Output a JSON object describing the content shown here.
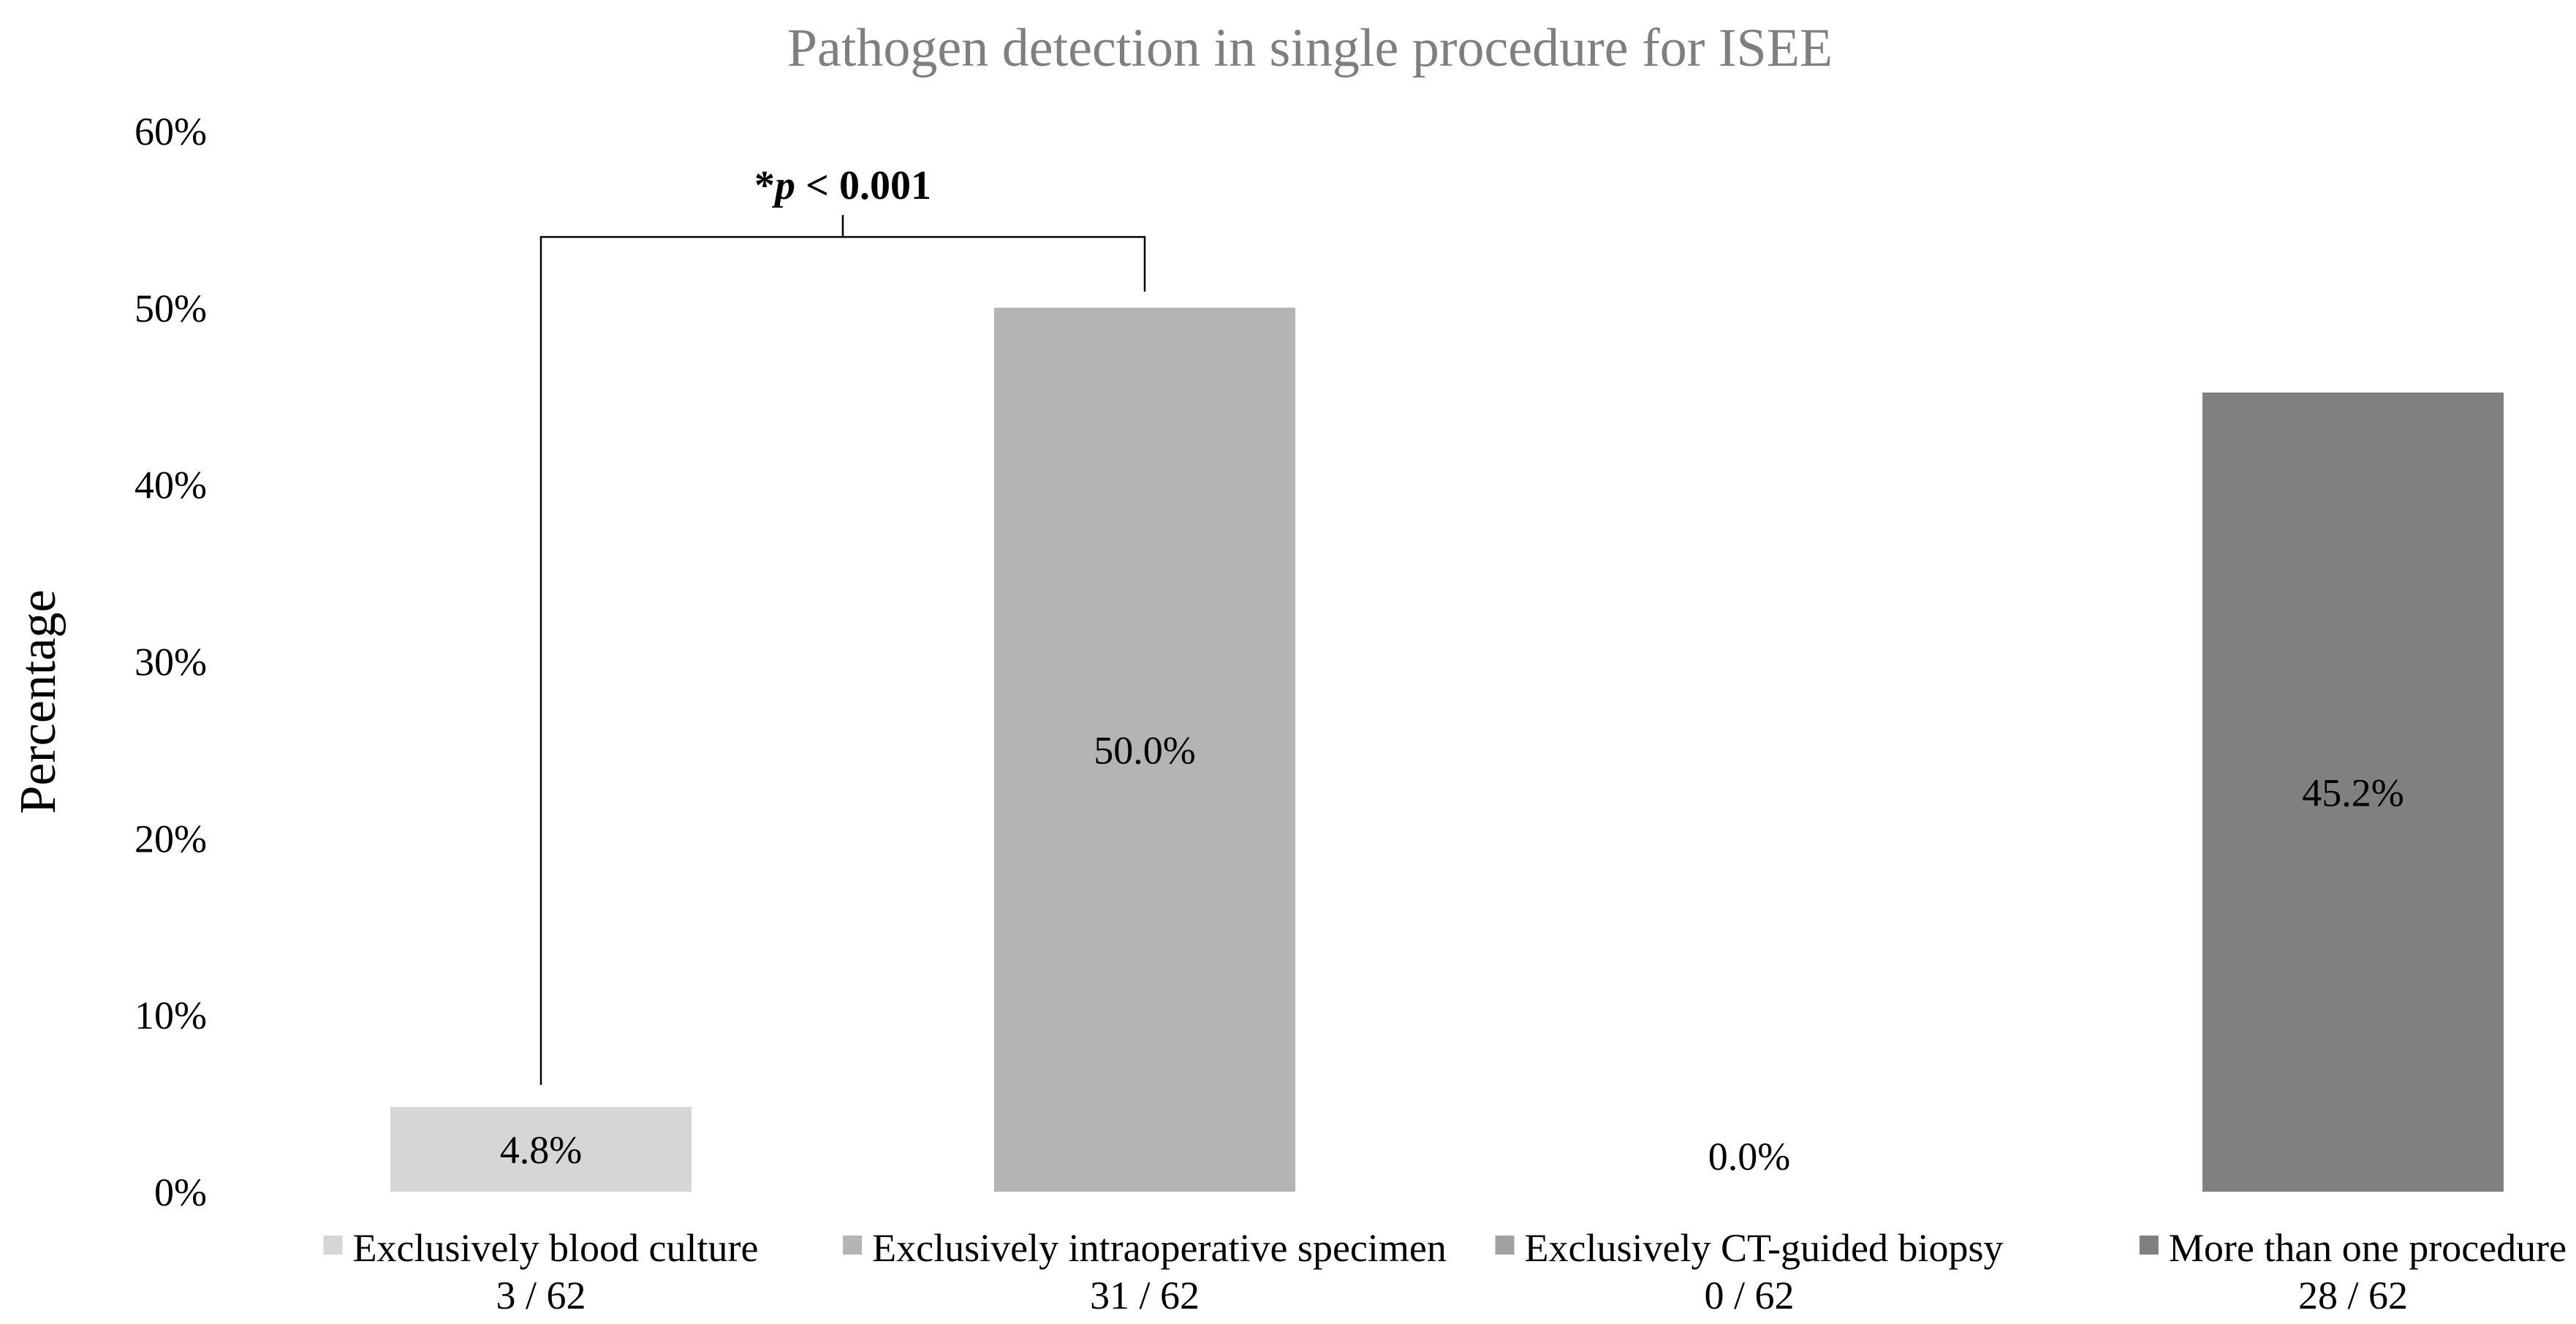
{
  "chart_data": {
    "type": "bar",
    "title": "Pathogen detection in single procedure for ISEE",
    "ylabel": "Percentage",
    "xlabel": "",
    "ylim": [
      0,
      60
    ],
    "yticks": [
      0,
      10,
      20,
      30,
      40,
      50,
      60
    ],
    "ytick_labels": [
      "0%",
      "10%",
      "20%",
      "30%",
      "40%",
      "50%",
      "60%"
    ],
    "grid": false,
    "legend": "none",
    "categories": [
      "Exclusively blood culture",
      "Exclusively intraoperative specimen",
      "Exclusively CT-guided biopsy",
      "More than one procedure"
    ],
    "counts": [
      "3 / 62",
      "31 / 62",
      "0 / 62",
      "28 / 62"
    ],
    "values": [
      4.8,
      50.0,
      0.0,
      45.2
    ],
    "value_labels": [
      "4.8%",
      "50.0%",
      "0.0%",
      "45.2%"
    ],
    "colors": [
      "#d6d6d6",
      "#b4b4b4",
      "#a0a0a0",
      "#808080"
    ],
    "annotations": [
      {
        "type": "significance-bracket",
        "from_category": 0,
        "to_category": 1,
        "prefix": "*",
        "italic": "p",
        "suffix": " < 0.001"
      }
    ]
  }
}
